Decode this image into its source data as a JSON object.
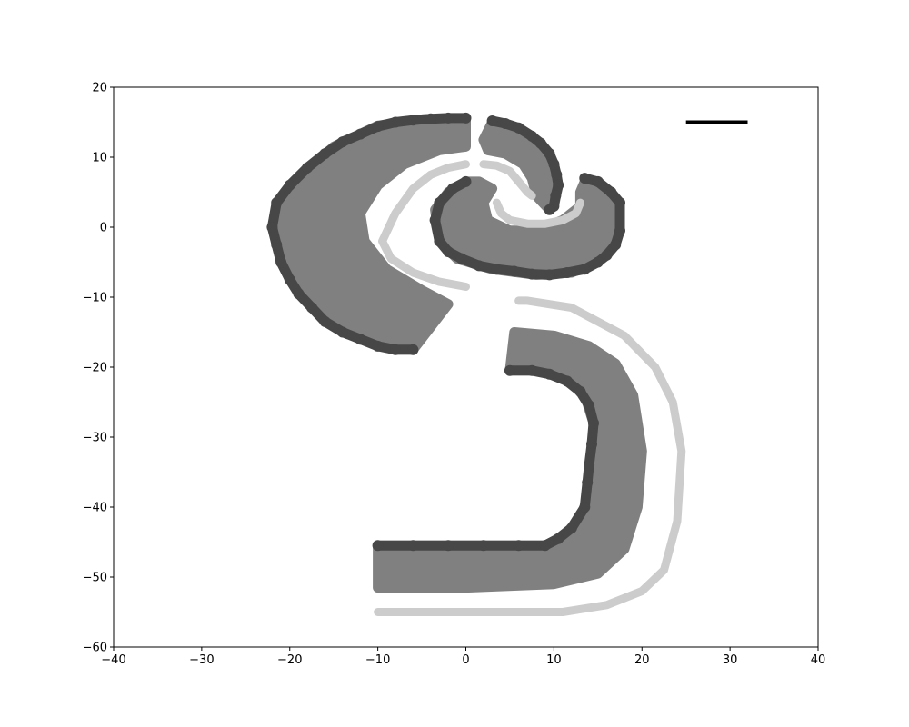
{
  "chart_data": {
    "type": "scatter",
    "title": "",
    "xlabel": "",
    "ylabel": "",
    "xlim": [
      -40,
      40
    ],
    "ylim": [
      -60,
      20
    ],
    "xticks": [
      -40,
      -30,
      -20,
      -10,
      0,
      10,
      20,
      30,
      40
    ],
    "yticks": [
      20,
      10,
      0,
      -10,
      -20,
      -30,
      -40,
      -50,
      -60
    ],
    "grid": false,
    "legend": "none",
    "colors": {
      "light": "#cccccc",
      "mid": "#808080",
      "dark": "#474747",
      "scale_bar": "#000000",
      "axes": "#000000"
    },
    "scale_bar": {
      "x": [
        25,
        32
      ],
      "y": 15
    },
    "regions": [
      {
        "name": "upper-left arc band",
        "shade": "mid",
        "outer_edge": [
          [
            0,
            15.6
          ],
          [
            -5,
            15.4
          ],
          [
            -10,
            14.5
          ],
          [
            -15,
            11.5
          ],
          [
            -19,
            7
          ],
          [
            -21.5,
            2
          ],
          [
            -22,
            0
          ],
          [
            -21,
            -5
          ],
          [
            -19,
            -9.5
          ],
          [
            -16,
            -13.5
          ],
          [
            -12,
            -16
          ],
          [
            -8,
            -17.5
          ],
          [
            -6,
            -17.5
          ]
        ],
        "inner_edge": [
          [
            -2,
            -11
          ],
          [
            -5,
            -9
          ],
          [
            -9,
            -6
          ],
          [
            -11.5,
            -2
          ],
          [
            -12,
            2
          ],
          [
            -10,
            6
          ],
          [
            -7,
            9
          ],
          [
            -3,
            11
          ],
          [
            0,
            11.5
          ]
        ]
      },
      {
        "name": "upper-left arc dark rim",
        "shade": "dark",
        "x": [
          0,
          -2,
          -4,
          -6,
          -8,
          -10,
          -12,
          -14,
          -16,
          -18,
          -20,
          -21.5,
          -22,
          -21.5,
          -21,
          -20,
          -19,
          -17.5,
          -16,
          -14,
          -12,
          -10,
          -8,
          -6
        ],
        "y": [
          15.6,
          15.6,
          15.5,
          15.3,
          15,
          14.4,
          13.3,
          12.2,
          10.5,
          8.5,
          6,
          3.5,
          0,
          -2.5,
          -5,
          -7.5,
          -9.5,
          -11.5,
          -13.5,
          -15,
          -16,
          -17,
          -17.5,
          -17.5
        ]
      },
      {
        "name": "upper-left arc light inner track",
        "shade": "light",
        "x": [
          0,
          -2,
          -4,
          -6,
          -8,
          -9.5,
          -8.5,
          -6,
          -3,
          0
        ],
        "y": [
          9,
          8.5,
          7.5,
          5.5,
          2,
          -2,
          -4.5,
          -6.5,
          -7.8,
          -8.5
        ]
      },
      {
        "name": "upper-right small arc band",
        "shade": "mid",
        "outer_edge": [
          [
            3,
            15
          ],
          [
            6,
            14
          ],
          [
            8.5,
            12
          ],
          [
            10,
            9
          ],
          [
            10.5,
            6
          ],
          [
            10,
            3
          ],
          [
            9.5,
            2.5
          ]
        ],
        "inner_edge": [
          [
            8,
            4.5
          ],
          [
            7.5,
            7
          ],
          [
            6.5,
            9
          ],
          [
            4.5,
            10.5
          ],
          [
            2.5,
            11
          ],
          [
            2,
            12.5
          ]
        ]
      },
      {
        "name": "upper-right small arc dark rim",
        "shade": "dark",
        "x": [
          3,
          4.5,
          6,
          7.5,
          8.5,
          9.5,
          10,
          10.3,
          10.5,
          10.2,
          10,
          9.5
        ],
        "y": [
          15.2,
          14.8,
          14.2,
          13,
          12,
          10.5,
          9,
          7.5,
          6,
          4.5,
          3,
          2.5
        ]
      },
      {
        "name": "upper-right small arc light track",
        "shade": "light",
        "x": [
          2,
          3.5,
          5,
          6,
          7,
          7.5
        ],
        "y": [
          9,
          8.8,
          8,
          6.5,
          5,
          4.5
        ]
      },
      {
        "name": "middle ring band",
        "shade": "mid",
        "outer_edge": [
          [
            0,
            6.5
          ],
          [
            -2,
            5
          ],
          [
            -3.5,
            2.5
          ],
          [
            -3,
            -2
          ],
          [
            -1,
            -4.5
          ],
          [
            3,
            -6
          ],
          [
            8,
            -6.8
          ],
          [
            12,
            -6.5
          ],
          [
            15,
            -5
          ],
          [
            17,
            -2
          ],
          [
            17.5,
            1
          ],
          [
            17,
            4
          ],
          [
            13.5,
            6.5
          ],
          [
            13,
            5
          ]
        ],
        "inner_edge": [
          [
            13,
            3
          ],
          [
            11,
            1
          ],
          [
            8,
            -0.5
          ],
          [
            5,
            -0.5
          ],
          [
            2.5,
            1
          ],
          [
            2,
            3.5
          ],
          [
            3,
            5.5
          ],
          [
            1.5,
            6.5
          ]
        ]
      },
      {
        "name": "middle ring dark rim",
        "shade": "dark",
        "x": [
          0,
          -1.5,
          -3,
          -3.5,
          -3,
          -2,
          -0.5,
          1.5,
          3.5,
          5.5,
          7.5,
          9.5,
          11.5,
          13.5,
          15,
          16,
          17,
          17.5,
          17.5,
          16.5,
          15,
          13.5
        ],
        "y": [
          6.5,
          5.5,
          3.5,
          1,
          -2,
          -3.5,
          -4.5,
          -5.5,
          -6,
          -6.3,
          -6.7,
          -6.8,
          -6.5,
          -6,
          -5,
          -4,
          -2.5,
          -0.5,
          3.5,
          5,
          6.5,
          7
        ]
      },
      {
        "name": "middle ring light inner track",
        "shade": "light",
        "x": [
          3.5,
          4,
          5,
          7,
          9,
          11,
          12.5,
          13
        ],
        "y": [
          3.5,
          2,
          1,
          0.5,
          0.5,
          1,
          2,
          3.5
        ]
      },
      {
        "name": "lower hook band",
        "shade": "mid",
        "outer_edge": [
          [
            5.5,
            -15
          ],
          [
            10,
            -15.5
          ],
          [
            14,
            -17
          ],
          [
            17,
            -19.5
          ],
          [
            19,
            -24
          ],
          [
            20,
            -32
          ],
          [
            19.5,
            -40
          ],
          [
            18,
            -46
          ],
          [
            15,
            -49.5
          ],
          [
            10,
            -51
          ],
          [
            0,
            -51.5
          ],
          [
            -10,
            -51.5
          ]
        ],
        "inner_edge": [
          [
            -10,
            -45.5
          ],
          [
            0,
            -45.5
          ],
          [
            9,
            -45.5
          ],
          [
            12,
            -43.5
          ],
          [
            13.5,
            -40
          ],
          [
            14.5,
            -32
          ],
          [
            14.5,
            -28
          ],
          [
            13.5,
            -24
          ],
          [
            11.5,
            -21.5
          ],
          [
            8,
            -20.5
          ],
          [
            5,
            -20.5
          ]
        ]
      },
      {
        "name": "lower hook dark rim",
        "shade": "dark",
        "x": [
          -10,
          -6,
          -2,
          2,
          6,
          9,
          10.5,
          12,
          13.5,
          13.8,
          14,
          14.3,
          14.5,
          14,
          13,
          11.5,
          9.5,
          7.5,
          5
        ],
        "y": [
          -45.5,
          -45.5,
          -45.5,
          -45.5,
          -45.5,
          -45.5,
          -44.5,
          -43,
          -40,
          -36.5,
          -34,
          -31,
          -28,
          -25.5,
          -23.5,
          -22,
          -21,
          -20.5,
          -20.5
        ]
      },
      {
        "name": "lower hook light outer track",
        "shade": "light",
        "x": [
          -10,
          -5,
          0,
          5,
          10,
          11,
          16,
          20,
          22.5,
          24,
          24.5,
          23.5,
          21.5,
          18,
          12,
          7,
          6
        ],
        "y": [
          -55,
          -55,
          -55,
          -55,
          -55,
          -55,
          -54,
          -52,
          -49,
          -42,
          -32,
          -25,
          -20,
          -15.5,
          -11.5,
          -10.5,
          -10.5
        ]
      }
    ]
  }
}
